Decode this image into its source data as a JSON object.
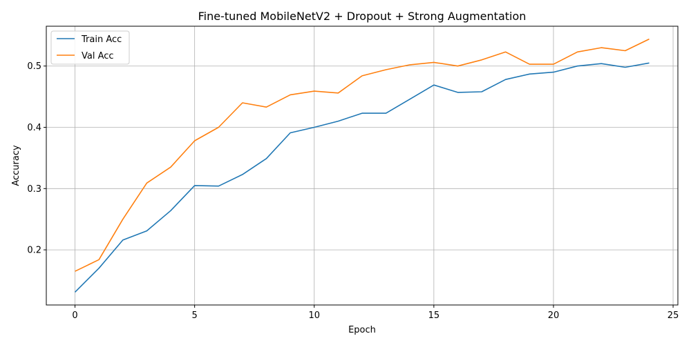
{
  "chart_data": {
    "type": "line",
    "title": "Fine-tuned MobileNetV2 + Dropout + Strong Augmentation",
    "xlabel": "Epoch",
    "ylabel": "Accuracy",
    "xlim": [
      -1.2,
      25.2
    ],
    "ylim": [
      0.11,
      0.565
    ],
    "xticks": [
      0,
      5,
      10,
      15,
      20,
      25
    ],
    "yticks": [
      0.2,
      0.3,
      0.4,
      0.5
    ],
    "grid": true,
    "legend_position": "top-left",
    "x": [
      0,
      1,
      2,
      3,
      4,
      5,
      6,
      7,
      8,
      9,
      10,
      11,
      12,
      13,
      14,
      15,
      16,
      17,
      18,
      19,
      20,
      21,
      22,
      23,
      24
    ],
    "series": [
      {
        "name": "Train Acc",
        "color": "#1f77b4",
        "values": [
          0.131,
          0.17,
          0.216,
          0.231,
          0.264,
          0.305,
          0.304,
          0.323,
          0.349,
          0.391,
          0.4,
          0.41,
          0.423,
          0.423,
          0.446,
          0.469,
          0.457,
          0.458,
          0.478,
          0.487,
          0.49,
          0.5,
          0.504,
          0.498,
          0.505
        ]
      },
      {
        "name": "Val Acc",
        "color": "#ff7f0e",
        "values": [
          0.165,
          0.184,
          0.25,
          0.309,
          0.335,
          0.378,
          0.4,
          0.44,
          0.433,
          0.453,
          0.459,
          0.456,
          0.484,
          0.494,
          0.502,
          0.506,
          0.5,
          0.51,
          0.523,
          0.503,
          0.503,
          0.523,
          0.53,
          0.525,
          0.544
        ]
      }
    ]
  }
}
